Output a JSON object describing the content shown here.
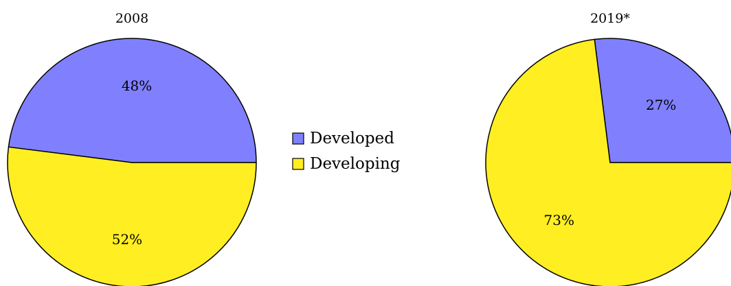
{
  "chart_data": [
    {
      "type": "pie",
      "title": "2008",
      "categories": [
        "Developed",
        "Developing"
      ],
      "values": [
        48,
        52
      ],
      "labels": [
        "48%",
        "52%"
      ]
    },
    {
      "type": "pie",
      "title": "2019*",
      "categories": [
        "Developed",
        "Developing"
      ],
      "values": [
        27,
        73
      ],
      "labels": [
        "27%",
        "73%"
      ]
    }
  ],
  "legend": {
    "placement": "center",
    "items": [
      {
        "label": "Developed",
        "color": "#8080ff"
      },
      {
        "label": "Developing",
        "color": "#ffee22"
      }
    ]
  },
  "colors": {
    "Developed": "#8080ff",
    "Developing": "#ffee22",
    "stroke": "#000000"
  }
}
